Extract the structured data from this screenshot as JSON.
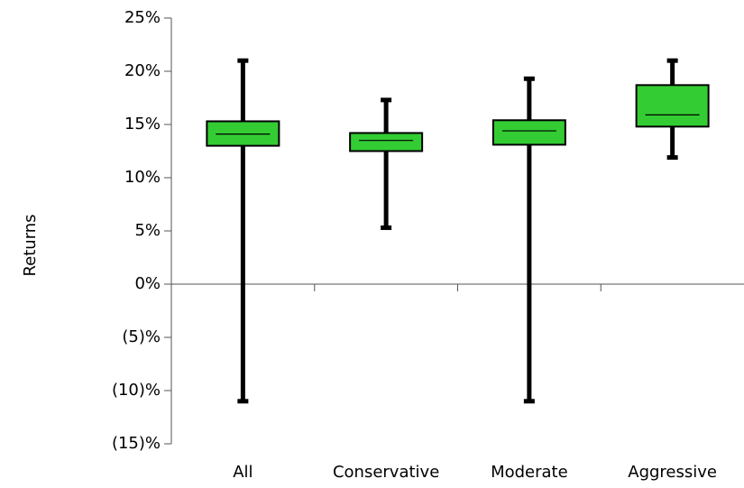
{
  "chart_data": {
    "type": "box",
    "y_label": "Returns",
    "categories": [
      "All",
      "Conservative",
      "Moderate",
      "Aggressive"
    ],
    "boxes": [
      {
        "whisker_low": -11.0,
        "q1": 13.0,
        "median": 14.1,
        "q3": 15.3,
        "whisker_high": 21.0
      },
      {
        "whisker_low": 5.3,
        "q1": 12.5,
        "median": 13.5,
        "q3": 14.2,
        "whisker_high": 17.3
      },
      {
        "whisker_low": -11.0,
        "q1": 13.1,
        "median": 14.4,
        "q3": 15.4,
        "whisker_high": 19.3
      },
      {
        "whisker_low": 11.9,
        "q1": 14.8,
        "median": 15.9,
        "q3": 18.7,
        "whisker_high": 21.0
      }
    ],
    "color": "#33cc33",
    "whisker_color": "#000000",
    "negative_label_color": "#ff0000",
    "ylim": [
      -15,
      25
    ],
    "yticks": [
      {
        "value": -15,
        "label": "(15)%"
      },
      {
        "value": -10,
        "label": "(10)%"
      },
      {
        "value": -5,
        "label": "(5)%"
      },
      {
        "value": 0,
        "label": "0%"
      },
      {
        "value": 5,
        "label": "5%"
      },
      {
        "value": 10,
        "label": "10%"
      },
      {
        "value": 15,
        "label": "15%"
      },
      {
        "value": 20,
        "label": "20%"
      },
      {
        "value": 25,
        "label": "25%"
      }
    ],
    "grid": false
  }
}
